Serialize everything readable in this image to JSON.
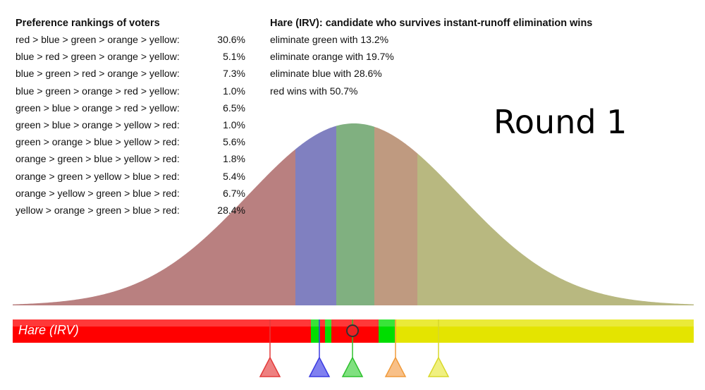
{
  "rankings": {
    "heading": "Preference rankings of voters",
    "rows": [
      {
        "order": "red > blue > green > orange > yellow:",
        "share": "30.6%"
      },
      {
        "order": "blue > red > green > orange > yellow:",
        "share": "5.1%"
      },
      {
        "order": "blue > green > red > orange > yellow:",
        "share": "7.3%"
      },
      {
        "order": "blue > green > orange > red > yellow:",
        "share": "1.0%"
      },
      {
        "order": "green > blue > orange > red > yellow:",
        "share": "6.5%"
      },
      {
        "order": "green > blue > orange > yellow > red:",
        "share": "1.0%"
      },
      {
        "order": "green > orange > blue > yellow > red:",
        "share": "5.6%"
      },
      {
        "order": "orange > green > blue > yellow > red:",
        "share": "1.8%"
      },
      {
        "order": "orange > green > yellow > blue > red:",
        "share": "5.4%"
      },
      {
        "order": "orange > yellow > green > blue > red:",
        "share": "6.7%"
      },
      {
        "order": "yellow > orange > green > blue > red:",
        "share": "28.4%"
      }
    ]
  },
  "rounds": {
    "heading": "Hare (IRV): candidate who survives instant-runoff elimination wins",
    "steps": [
      "eliminate green with 13.2%",
      "eliminate orange with 19.7%",
      "eliminate blue with 28.6%",
      "red wins with 50.7%"
    ]
  },
  "round_label": "Round 1",
  "method_bar": {
    "label": "Hare (IRV)",
    "colors": {
      "red": "#ff0000",
      "green": "#00dd00",
      "yellow": "#e4e400"
    }
  },
  "candidates": [
    {
      "name": "red",
      "color": "#e23a3a",
      "fill": "#ee8080"
    },
    {
      "name": "blue",
      "color": "#3a3ae0",
      "fill": "#8080f0"
    },
    {
      "name": "green",
      "color": "#2ec02e",
      "fill": "#80e080"
    },
    {
      "name": "orange",
      "color": "#f09a3a",
      "fill": "#f8c088"
    },
    {
      "name": "yellow",
      "color": "#d8d82a",
      "fill": "#f0f080"
    }
  ],
  "region_colors": {
    "red": "#b98080",
    "blue": "#8080c0",
    "green": "#80b080",
    "orange": "#bf9a80",
    "yellow": "#b8b880"
  }
}
